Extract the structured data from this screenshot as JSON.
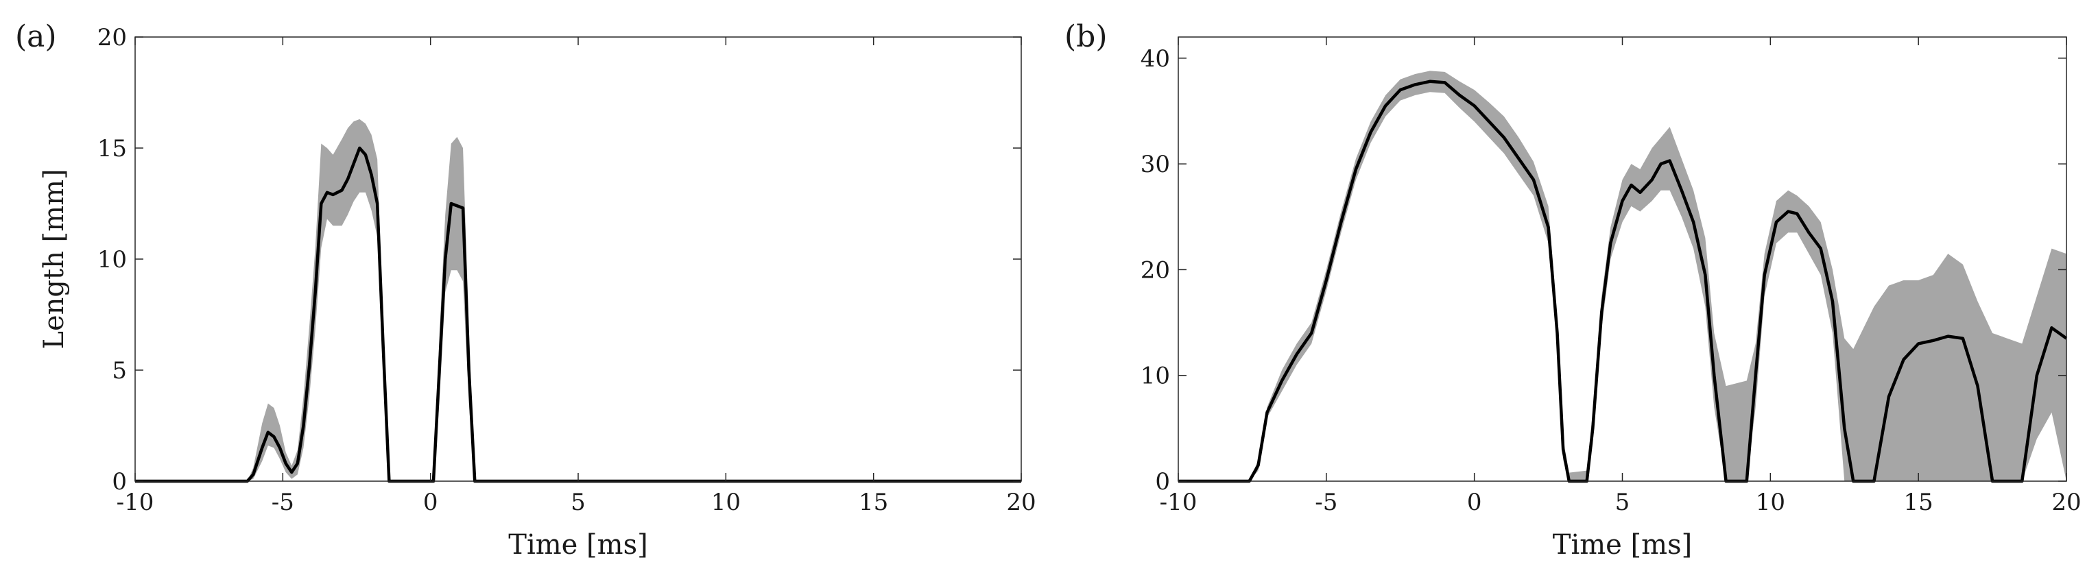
{
  "chart_data": [
    {
      "panel_label": "(a)",
      "type": "line",
      "xlabel": "Time [ms]",
      "ylabel": "Length [mm]",
      "xlim": [
        -10,
        20
      ],
      "ylim": [
        0,
        20
      ],
      "xticks": [
        -10,
        -5,
        0,
        5,
        10,
        15,
        20
      ],
      "yticks": [
        0,
        5,
        10,
        15,
        20
      ],
      "grid": false,
      "band_color": "#a6a6a6",
      "line_color": "#000000",
      "series": [
        {
          "x": [
            -10,
            -6.2,
            -6.0,
            -5.7,
            -5.5,
            -5.3,
            -5.1,
            -4.9,
            -4.7,
            -4.5,
            -4.3,
            -4.1,
            -3.9,
            -3.7,
            -3.5,
            -3.3,
            -3.0,
            -2.8,
            -2.6,
            -2.4,
            -2.2,
            -2.0,
            -1.8,
            -1.6,
            -1.4,
            -1.2,
            -1.0,
            0.1,
            0.3,
            0.5,
            0.7,
            0.9,
            1.1,
            1.3,
            1.5,
            20
          ],
          "values": [
            0,
            0,
            0.3,
            1.5,
            2.2,
            2.0,
            1.5,
            0.8,
            0.4,
            0.8,
            2.5,
            5.2,
            8.5,
            12.5,
            13.0,
            12.9,
            13.1,
            13.6,
            14.3,
            15.0,
            14.7,
            13.8,
            12.5,
            6.0,
            0,
            0,
            0,
            0,
            5.0,
            10.0,
            12.5,
            12.4,
            12.3,
            5.0,
            0,
            0
          ],
          "upper": [
            0,
            0,
            0.6,
            2.6,
            3.5,
            3.3,
            2.5,
            1.3,
            0.7,
            1.4,
            3.8,
            7.0,
            10.5,
            15.2,
            15.0,
            14.7,
            15.4,
            15.9,
            16.2,
            16.3,
            16.1,
            15.6,
            14.5,
            7.0,
            0,
            0,
            0,
            0,
            6.5,
            12.0,
            15.2,
            15.5,
            15.0,
            7.0,
            0,
            0
          ],
          "lower": [
            0,
            0,
            0.1,
            0.9,
            1.6,
            1.5,
            1.0,
            0.4,
            0.1,
            0.3,
            1.5,
            3.8,
            6.8,
            10.5,
            11.8,
            11.5,
            11.5,
            12.0,
            12.6,
            13.0,
            13.0,
            12.2,
            11.0,
            5.0,
            0,
            0,
            0,
            0,
            3.5,
            8.5,
            9.5,
            9.5,
            9.0,
            3.5,
            0,
            0
          ]
        }
      ]
    },
    {
      "panel_label": "(b)",
      "type": "line",
      "xlabel": "Time [ms]",
      "ylabel": "",
      "xlim": [
        -10,
        20
      ],
      "ylim": [
        0,
        42
      ],
      "xticks": [
        -10,
        -5,
        0,
        5,
        10,
        15,
        20
      ],
      "yticks": [
        0,
        10,
        20,
        30,
        40
      ],
      "grid": false,
      "band_color": "#a6a6a6",
      "line_color": "#000000",
      "series": [
        {
          "x": [
            -10,
            -7.6,
            -7.3,
            -7.0,
            -6.5,
            -6.0,
            -5.5,
            -5.0,
            -4.5,
            -4.0,
            -3.5,
            -3.0,
            -2.5,
            -2.0,
            -1.5,
            -1.0,
            -0.5,
            0.0,
            0.5,
            1.0,
            1.5,
            2.0,
            2.5,
            2.8,
            3.0,
            3.2,
            3.8,
            4.0,
            4.3,
            4.6,
            5.0,
            5.3,
            5.6,
            6.0,
            6.3,
            6.6,
            7.0,
            7.4,
            7.8,
            8.1,
            8.5,
            9.2,
            9.5,
            9.8,
            10.2,
            10.6,
            10.9,
            11.3,
            11.7,
            12.1,
            12.5,
            12.8,
            13.5,
            14.0,
            14.5,
            15.0,
            15.5,
            16.0,
            16.5,
            17.0,
            17.5,
            18.5,
            19.0,
            19.5,
            20.0
          ],
          "values": [
            0,
            0,
            1.5,
            6.5,
            9.5,
            12.0,
            14.0,
            19.0,
            24.5,
            29.5,
            33.0,
            35.5,
            37.0,
            37.5,
            37.8,
            37.7,
            36.5,
            35.5,
            34.0,
            32.5,
            30.5,
            28.5,
            24.0,
            14.0,
            3.0,
            0,
            0,
            5.0,
            16.0,
            22.5,
            26.5,
            28.0,
            27.3,
            28.5,
            30.0,
            30.3,
            27.5,
            24.5,
            19.5,
            10.0,
            0,
            0,
            10.0,
            19.5,
            24.5,
            25.5,
            25.3,
            23.5,
            22.0,
            17.0,
            5.0,
            0,
            0,
            8.0,
            11.5,
            13.0,
            13.3,
            13.7,
            13.5,
            9.0,
            0,
            0,
            10.0,
            14.5,
            13.5
          ],
          "upper": [
            0,
            0,
            2.0,
            7.0,
            10.5,
            13.0,
            15.0,
            20.0,
            25.5,
            30.5,
            34.0,
            36.5,
            38.0,
            38.5,
            38.8,
            38.7,
            37.8,
            37.0,
            35.8,
            34.5,
            32.5,
            30.2,
            26.0,
            15.5,
            4.0,
            0.8,
            1.0,
            6.5,
            17.5,
            24.0,
            28.5,
            30.0,
            29.5,
            31.5,
            32.5,
            33.5,
            30.5,
            27.5,
            23.0,
            14.0,
            9.0,
            9.5,
            13.0,
            21.5,
            26.5,
            27.5,
            27.0,
            26.0,
            24.5,
            20.0,
            13.5,
            12.5,
            16.5,
            18.5,
            19.0,
            19.0,
            19.5,
            21.5,
            20.5,
            17.0,
            14.0,
            13.0,
            17.5,
            22.0,
            21.5
          ],
          "lower": [
            0,
            0,
            1.0,
            6.0,
            8.5,
            11.0,
            13.0,
            18.0,
            23.5,
            28.5,
            32.0,
            34.5,
            36.0,
            36.5,
            36.8,
            36.7,
            35.3,
            34.0,
            32.5,
            31.0,
            29.0,
            27.0,
            22.5,
            12.5,
            2.0,
            0,
            0,
            3.5,
            14.5,
            21.0,
            24.5,
            26.0,
            25.5,
            26.5,
            27.5,
            27.5,
            25.0,
            22.0,
            16.5,
            7.0,
            0,
            0,
            7.0,
            17.5,
            22.5,
            23.5,
            23.5,
            21.5,
            19.5,
            14.0,
            0,
            0,
            0,
            0,
            0,
            0,
            0,
            0,
            0,
            0,
            0,
            0,
            4.0,
            6.5,
            0
          ]
        }
      ]
    }
  ]
}
